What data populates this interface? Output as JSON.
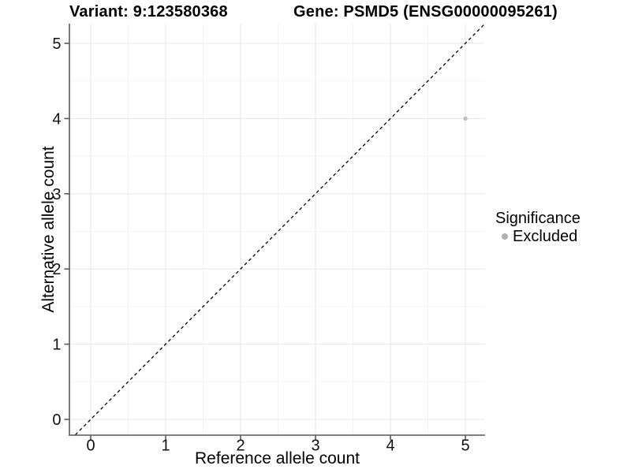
{
  "chart_data": {
    "type": "scatter",
    "title_left": "Variant: 9:123580368",
    "title_right": "Gene: PSMD5 (ENSG00000095261)",
    "xlabel": "Reference allele count",
    "ylabel": "Alternative allele count",
    "x_ticks": [
      0,
      1,
      2,
      3,
      4,
      5
    ],
    "y_ticks": [
      0,
      1,
      2,
      3,
      4,
      5
    ],
    "xlim": [
      -0.28,
      5.26
    ],
    "ylim": [
      -0.21,
      5.26
    ],
    "grid": {
      "major": true,
      "minor": true,
      "major_color": "#e8e8e8",
      "minor_color": "#f3f3f3"
    },
    "axis_color": "#5a5a5a",
    "reference_line": {
      "type": "identity",
      "slope": 1,
      "intercept": 0,
      "style": "dashed",
      "color": "#000000"
    },
    "series": [
      {
        "name": "Excluded",
        "color": "#bdbdbd",
        "points": [
          {
            "x": 5,
            "y": 4
          }
        ]
      }
    ],
    "legend": {
      "title": "Significance",
      "position": "right",
      "items": [
        {
          "label": "Excluded",
          "color": "#b0b0b0"
        }
      ]
    }
  }
}
